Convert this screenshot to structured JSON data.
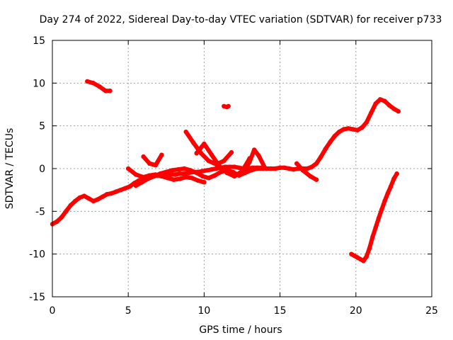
{
  "chart_data": {
    "type": "scatter",
    "title": "Day 274 of 2022, Sidereal Day-to-day VTEC variation (SDTVAR) for receiver p733",
    "xlabel": "GPS time / hours",
    "ylabel": "SDTVAR / TECUs",
    "xlim": [
      0,
      25
    ],
    "ylim": [
      -15,
      15
    ],
    "xticks": [
      0,
      5,
      10,
      15,
      20,
      25
    ],
    "xtick_labels": [
      "0",
      "5",
      "10",
      "15",
      "20",
      "25"
    ],
    "yticks": [
      -15,
      -10,
      -5,
      0,
      5,
      10,
      15
    ],
    "ytick_labels": [
      "-15",
      "-10",
      "-5",
      "0",
      "5",
      "10",
      "15"
    ],
    "grid": true,
    "legend": "none",
    "marker_color": "#ff0000",
    "series": [
      {
        "x": [
          0.0,
          0.3,
          0.6,
          0.9,
          1.2,
          1.5,
          1.8,
          2.1,
          2.4,
          2.7,
          3.0,
          3.3,
          3.6,
          3.9,
          4.2,
          4.5,
          4.8,
          5.1,
          5.4,
          5.7,
          6.0,
          6.3,
          6.6,
          6.9,
          7.2,
          7.5,
          7.8,
          8.1,
          8.4,
          8.7,
          9.0,
          9.3,
          9.6,
          9.9,
          10.2,
          10.5,
          10.8,
          11.1,
          11.4,
          11.7,
          12.0,
          12.3,
          12.6,
          12.9,
          13.2,
          13.5,
          13.8,
          14.1,
          14.4,
          14.7,
          15.0,
          15.3,
          15.6,
          15.9,
          16.2,
          16.5,
          16.8,
          17.1,
          17.4,
          17.7,
          18.0,
          18.3,
          18.6,
          18.9,
          19.2,
          19.5,
          19.8,
          20.1,
          20.4,
          20.7,
          21.0,
          21.3,
          21.6,
          21.9,
          22.2,
          22.5,
          22.8
        ],
        "y": [
          -6.5,
          -6.2,
          -5.7,
          -5.0,
          -4.3,
          -3.8,
          -3.4,
          -3.2,
          -3.5,
          -3.8,
          -3.6,
          -3.3,
          -3.0,
          -2.9,
          -2.7,
          -2.5,
          -2.3,
          -2.1,
          -1.7,
          -1.4,
          -1.2,
          -1.0,
          -0.9,
          -0.8,
          -0.8,
          -0.8,
          -0.7,
          -0.7,
          -0.6,
          -0.6,
          -0.5,
          -0.4,
          -0.4,
          -0.3,
          -0.2,
          -0.1,
          0.0,
          0.1,
          0.2,
          0.2,
          0.2,
          0.1,
          0.0,
          0.0,
          0.1,
          0.1,
          0.1,
          0.0,
          0.0,
          0.0,
          0.1,
          0.1,
          0.0,
          -0.1,
          0.0,
          0.0,
          0.0,
          0.2,
          0.6,
          1.4,
          2.3,
          3.1,
          3.8,
          4.3,
          4.6,
          4.7,
          4.6,
          4.5,
          4.8,
          5.4,
          6.5,
          7.6,
          8.1,
          7.9,
          7.4,
          7.0,
          6.7
        ]
      },
      {
        "x": [
          5.0,
          5.5,
          6.0,
          6.4,
          6.8,
          7.2,
          7.6,
          8.0,
          8.4,
          8.8,
          9.2,
          9.6,
          10.0
        ],
        "y": [
          0.0,
          -0.7,
          -1.0,
          -0.8,
          -0.7,
          -0.9,
          -1.1,
          -1.3,
          -1.2,
          -1.0,
          -1.1,
          -1.4,
          -1.6
        ]
      },
      {
        "x": [
          5.5,
          5.9,
          6.3,
          6.7,
          7.1,
          7.5,
          7.9,
          8.3,
          8.7,
          9.1,
          9.5,
          9.9,
          10.3,
          10.7,
          11.1,
          11.5,
          11.9,
          12.3,
          12.7,
          13.1,
          13.5,
          13.9
        ],
        "y": [
          -2.0,
          -1.6,
          -1.2,
          -0.9,
          -0.6,
          -0.4,
          -0.2,
          -0.1,
          0.0,
          -0.2,
          -0.5,
          -0.9,
          -1.1,
          -0.8,
          -0.4,
          -0.2,
          -0.4,
          -0.8,
          -0.5,
          -0.2,
          0.0,
          0.0
        ]
      },
      {
        "x": [
          6.0,
          6.4,
          6.8,
          7.2
        ],
        "y": [
          1.4,
          0.6,
          0.4,
          1.6
        ]
      },
      {
        "x": [
          8.8,
          9.3,
          9.8,
          10.3,
          10.8,
          11.3,
          11.8
        ],
        "y": [
          4.3,
          3.0,
          1.8,
          0.9,
          0.5,
          0.9,
          1.9
        ]
      },
      {
        "x": [
          9.5,
          10.0,
          10.5,
          11.0,
          11.5,
          12.0,
          12.5,
          13.0
        ],
        "y": [
          1.8,
          2.9,
          1.6,
          0.3,
          -0.5,
          -0.9,
          -0.3,
          1.2
        ]
      },
      {
        "x": [
          12.6,
          13.0,
          13.3,
          13.6,
          14.0
        ],
        "y": [
          -0.4,
          0.8,
          2.2,
          1.5,
          0.1
        ]
      },
      {
        "x": [
          16.1,
          16.5,
          17.0,
          17.4
        ],
        "y": [
          0.6,
          -0.2,
          -0.9,
          -1.3
        ]
      },
      {
        "x": [
          2.3,
          2.7,
          3.1,
          3.5,
          3.8
        ],
        "y": [
          10.2,
          10.0,
          9.6,
          9.1,
          9.1
        ]
      },
      {
        "x": [
          11.3,
          11.5,
          11.6
        ],
        "y": [
          7.3,
          7.2,
          7.3
        ]
      },
      {
        "x": [
          19.7,
          19.9,
          20.1,
          20.3,
          20.5,
          20.7,
          20.9,
          21.1,
          21.3,
          21.5,
          21.7,
          21.9,
          22.1,
          22.3,
          22.5,
          22.7
        ],
        "y": [
          -10.0,
          -10.2,
          -10.4,
          -10.6,
          -10.8,
          -10.3,
          -9.3,
          -8.0,
          -6.9,
          -5.8,
          -4.8,
          -3.8,
          -2.9,
          -2.1,
          -1.2,
          -0.6
        ]
      }
    ]
  }
}
